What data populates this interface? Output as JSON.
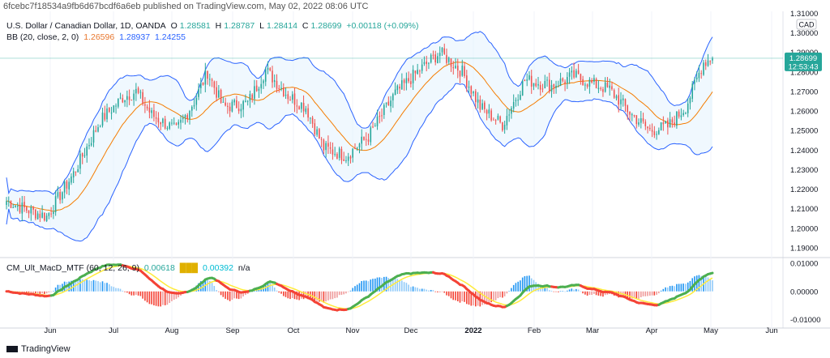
{
  "header": {
    "published": "6fcebc7f18534a9fb6d67bcdf6a6eb published on TradingView.com, May 02, 2022 08:06 UTC"
  },
  "legend": {
    "symbol": "U.S. Dollar / Canadian Dollar, 1D, OANDA",
    "open_label": "O",
    "open": "1.28581",
    "high_label": "H",
    "high": "1.28787",
    "low_label": "L",
    "low": "1.28414",
    "close_label": "C",
    "close": "1.28699",
    "change": "+0.00118 (+0.09%)",
    "bb_label": "BB (20, close, 2, 0)",
    "bb_basis": "1.26596",
    "bb_upper": "1.28937",
    "bb_lower": "1.24255",
    "macd_label": "CM_Ult_MacD_MTF (60, 12, 26, 9)",
    "macd_v1": "0.00618",
    "macd_v2": "0.00392",
    "macd_na": "n/a"
  },
  "price_badge": {
    "price": "1.28699",
    "countdown": "12:53:43"
  },
  "currency": "CAD",
  "brand": "TradingView",
  "colors": {
    "up": "#26a69a",
    "down": "#ef5350",
    "basis": "#f57c00",
    "band": "#2962ff",
    "band_fill": "#e3f2fd",
    "badge": "#26a69a",
    "macd_green": "#4caf50",
    "macd_red": "#f44336",
    "signal": "#ffeb3b"
  },
  "chart_data": {
    "type": "candlestick",
    "price_axis": {
      "ylim": [
        1.185,
        1.311
      ],
      "ticks": [
        "1.31000",
        "1.30000",
        "1.29000",
        "1.28000",
        "1.27000",
        "1.26000",
        "1.25000",
        "1.24000",
        "1.23000",
        "1.22000",
        "1.21000",
        "1.20000",
        "1.19000"
      ]
    },
    "macd_axis": {
      "ylim": [
        -0.013,
        0.012
      ],
      "ticks": [
        "0.01000",
        "0.00000",
        "-0.01000"
      ]
    },
    "x_labels": [
      "Jun",
      "Jul",
      "Aug",
      "Sep",
      "Oct",
      "Nov",
      "Dec",
      "2022",
      "Feb",
      "Mar",
      "Apr",
      "May",
      "Jun"
    ],
    "anchors": [
      [
        0,
        1.214
      ],
      [
        8,
        1.21
      ],
      [
        18,
        1.206
      ],
      [
        30,
        1.228
      ],
      [
        42,
        1.255
      ],
      [
        52,
        1.267
      ],
      [
        58,
        1.27
      ],
      [
        65,
        1.258
      ],
      [
        76,
        1.25
      ],
      [
        84,
        1.265
      ],
      [
        90,
        1.28
      ],
      [
        97,
        1.262
      ],
      [
        108,
        1.264
      ],
      [
        116,
        1.281
      ],
      [
        126,
        1.268
      ],
      [
        134,
        1.262
      ],
      [
        142,
        1.241
      ],
      [
        152,
        1.237
      ],
      [
        162,
        1.247
      ],
      [
        174,
        1.269
      ],
      [
        184,
        1.28
      ],
      [
        194,
        1.29
      ],
      [
        204,
        1.28
      ],
      [
        212,
        1.262
      ],
      [
        222,
        1.253
      ],
      [
        232,
        1.276
      ],
      [
        244,
        1.273
      ],
      [
        254,
        1.278
      ],
      [
        262,
        1.274
      ],
      [
        270,
        1.271
      ],
      [
        280,
        1.258
      ],
      [
        288,
        1.25
      ],
      [
        296,
        1.252
      ],
      [
        304,
        1.262
      ],
      [
        312,
        1.285
      ],
      [
        316,
        1.287
      ]
    ],
    "last": {
      "open": 1.28581,
      "high": 1.28787,
      "low": 1.28414,
      "close": 1.28699
    }
  }
}
